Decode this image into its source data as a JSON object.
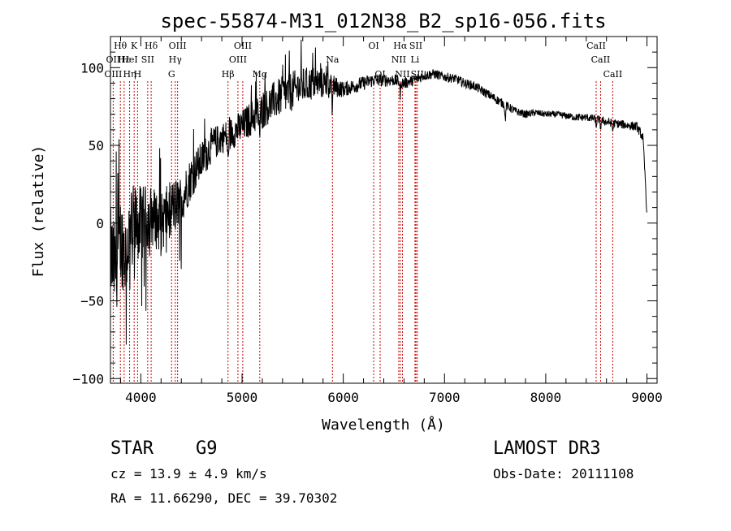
{
  "chart_data": {
    "type": "line",
    "title": "spec-55874-M31_012N38_B2_sp16-056.fits",
    "xlabel": "Wavelength (Å)",
    "ylabel": "Flux (relative)",
    "xlim": [
      3700,
      9100
    ],
    "ylim": [
      -103,
      120
    ],
    "xticks": [
      4000,
      5000,
      6000,
      7000,
      8000,
      9000
    ],
    "xtick_labels": [
      "4000",
      "5000",
      "6000",
      "7000",
      "8000",
      "9000"
    ],
    "yticks": [
      -100,
      -50,
      0,
      50,
      100
    ],
    "ytick_labels": [
      "−100",
      "−50",
      "0",
      "50",
      "100"
    ],
    "series": [
      {
        "name": "spectrum",
        "anchors": [
          [
            3700,
            -20
          ],
          [
            3750,
            -30
          ],
          [
            3800,
            -10
          ],
          [
            3850,
            -20
          ],
          [
            3900,
            -5
          ],
          [
            3950,
            0
          ],
          [
            4000,
            0
          ],
          [
            4100,
            5
          ],
          [
            4200,
            0
          ],
          [
            4300,
            10
          ],
          [
            4400,
            15
          ],
          [
            4500,
            30
          ],
          [
            4600,
            40
          ],
          [
            4700,
            50
          ],
          [
            4800,
            55
          ],
          [
            4900,
            58
          ],
          [
            5000,
            62
          ],
          [
            5100,
            68
          ],
          [
            5200,
            72
          ],
          [
            5300,
            78
          ],
          [
            5400,
            82
          ],
          [
            5500,
            85
          ],
          [
            5600,
            88
          ],
          [
            5700,
            90
          ],
          [
            5800,
            90
          ],
          [
            5900,
            88
          ],
          [
            6000,
            86
          ],
          [
            6100,
            88
          ],
          [
            6200,
            90
          ],
          [
            6300,
            92
          ],
          [
            6400,
            92
          ],
          [
            6500,
            92
          ],
          [
            6600,
            90
          ],
          [
            6700,
            92
          ],
          [
            6800,
            95
          ],
          [
            6900,
            96
          ],
          [
            7000,
            94
          ],
          [
            7100,
            93
          ],
          [
            7200,
            90
          ],
          [
            7300,
            88
          ],
          [
            7400,
            84
          ],
          [
            7500,
            80
          ],
          [
            7600,
            76
          ],
          [
            7700,
            72
          ],
          [
            7800,
            70
          ],
          [
            7900,
            71
          ],
          [
            8000,
            70
          ],
          [
            8100,
            70
          ],
          [
            8200,
            69
          ],
          [
            8300,
            68
          ],
          [
            8400,
            68
          ],
          [
            8500,
            67
          ],
          [
            8600,
            65
          ],
          [
            8700,
            64
          ],
          [
            8800,
            63
          ],
          [
            8900,
            62
          ],
          [
            8960,
            55
          ],
          [
            8990,
            20
          ],
          [
            9000,
            0
          ]
        ],
        "noise": [
          [
            3700,
            30
          ],
          [
            3900,
            28
          ],
          [
            4100,
            20
          ],
          [
            4300,
            18
          ],
          [
            4500,
            14
          ],
          [
            4800,
            10
          ],
          [
            5200,
            12
          ],
          [
            5500,
            13
          ],
          [
            5800,
            10
          ],
          [
            6000,
            5
          ],
          [
            6500,
            4
          ],
          [
            7000,
            3
          ],
          [
            7500,
            3
          ],
          [
            8000,
            2
          ],
          [
            8900,
            3
          ],
          [
            9000,
            3
          ]
        ],
        "dips": [
          [
            4861,
            20
          ],
          [
            5175,
            15
          ],
          [
            5890,
            15
          ],
          [
            6563,
            8
          ],
          [
            7600,
            10
          ],
          [
            8498,
            5
          ],
          [
            8542,
            5
          ],
          [
            8662,
            5
          ]
        ]
      }
    ],
    "emission_lines": [
      {
        "label": "Hθ",
        "wl": 3798,
        "row": 1
      },
      {
        "label": "OII",
        "wl": 3727,
        "row": 2
      },
      {
        "label": "OIII",
        "wl": 3727,
        "row": 3
      },
      {
        "label": "Hε",
        "wl": 3835,
        "row": 2
      },
      {
        "label": "Hη",
        "wl": 3889,
        "row": 3
      },
      {
        "label": "K",
        "wl": 3934,
        "row": 1
      },
      {
        "label": "HeI",
        "wl": 3889,
        "row": 2
      },
      {
        "label": "H",
        "wl": 3968,
        "row": 3
      },
      {
        "label": "SII",
        "wl": 4068,
        "row": 2
      },
      {
        "label": "Hδ",
        "wl": 4102,
        "row": 1
      },
      {
        "label": "OIII",
        "wl": 4363,
        "row": 1
      },
      {
        "label": "Hγ",
        "wl": 4340,
        "row": 2
      },
      {
        "label": "G",
        "wl": 4304,
        "row": 3
      },
      {
        "label": "Hβ",
        "wl": 4861,
        "row": 3
      },
      {
        "label": "OIII",
        "wl": 5007,
        "row": 1
      },
      {
        "label": "OIII",
        "wl": 4959,
        "row": 2
      },
      {
        "label": "Mg",
        "wl": 5175,
        "row": 3
      },
      {
        "label": "Na",
        "wl": 5893,
        "row": 2
      },
      {
        "label": "OI",
        "wl": 6300,
        "row": 1
      },
      {
        "label": "OI",
        "wl": 6364,
        "row": 3
      },
      {
        "label": "Hα",
        "wl": 6563,
        "row": 1
      },
      {
        "label": "NII",
        "wl": 6548,
        "row": 2
      },
      {
        "label": "NII",
        "wl": 6584,
        "row": 3
      },
      {
        "label": "SII",
        "wl": 6717,
        "row": 1
      },
      {
        "label": "Li",
        "wl": 6708,
        "row": 2
      },
      {
        "label": "SII",
        "wl": 6731,
        "row": 3
      },
      {
        "label": "CaII",
        "wl": 8498,
        "row": 1
      },
      {
        "label": "CaII",
        "wl": 8542,
        "row": 2
      },
      {
        "label": "CaII",
        "wl": 8662,
        "row": 3
      }
    ]
  },
  "info": {
    "object_class": "STAR",
    "subclass": "G9",
    "survey": "LAMOST DR3",
    "redshift": "cz = 13.9 ± 4.9 km/s",
    "obs_date": "Obs-Date: 20111108",
    "coords": "RA =  11.66290, DEC =  39.70302"
  },
  "colors": {
    "line_marker": "#cc0000",
    "spectrum": "#000000",
    "axes": "#000000"
  }
}
